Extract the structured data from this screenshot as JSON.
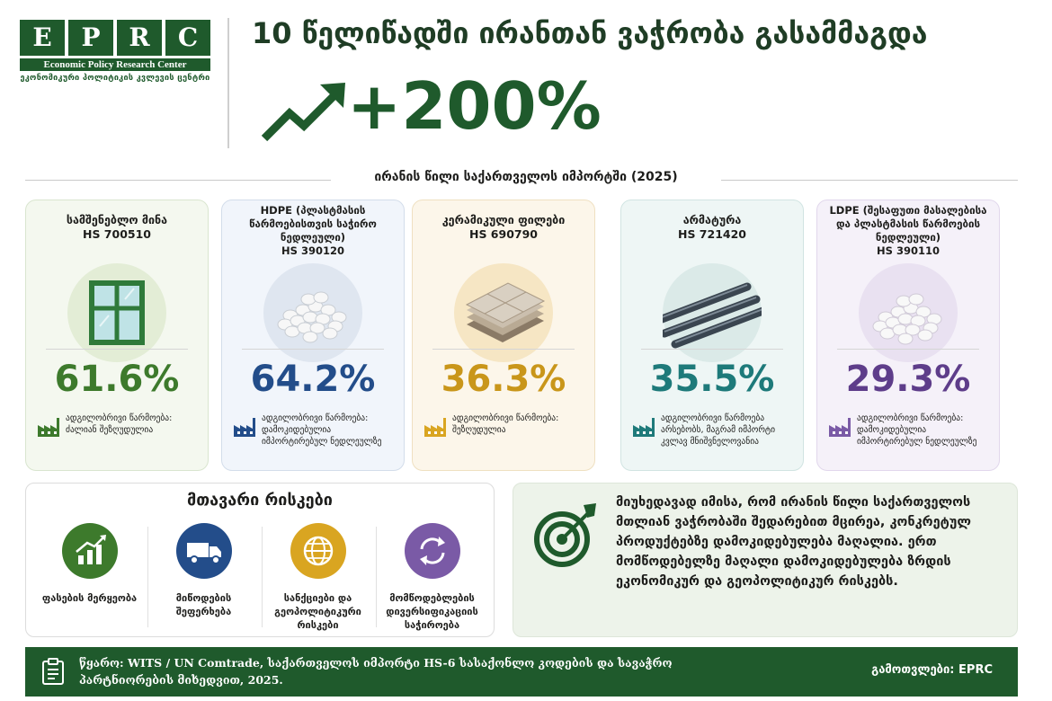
{
  "logo": {
    "letters": [
      "E",
      "P",
      "R",
      "C"
    ],
    "subtitle": "Economic Policy Research Center",
    "subtitle_ka": "ეკონომიკური პოლიტიკის კვლევის ცენტრი"
  },
  "header": {
    "title": "10 წელიწადში ირანთან ვაჭრობა გასამმაგდა",
    "growth": "+200%",
    "colors": {
      "primary": "#1f5a2c"
    }
  },
  "section": {
    "title": "ირანის წილი საქართველოს იმპორტში (2025)"
  },
  "cards": [
    {
      "name": "სამშენებლო მინა",
      "code": "HS 700510",
      "percent": "61.6%",
      "note": "ადგილობრივი წარმოება: ძალიან შეზღუდულია",
      "icon": "window-icon",
      "color": "#3d7a2c"
    },
    {
      "name": "HDPE (პლასტმასის წარმოებისთვის საჭირო ნედლეული)",
      "code": "HS 390120",
      "percent": "64.2%",
      "note": "ადგილობრივი წარმოება: დამოკიდებულია იმპორტირებულ ნედლეულზე",
      "icon": "pellets-icon",
      "color": "#234d8a"
    },
    {
      "name": "კერამიკული ფილები",
      "code": "HS 690790",
      "percent": "36.3%",
      "note": "ადგილობრივი წარმოება: შეზღუდულია",
      "icon": "tiles-icon",
      "color": "#c9961a"
    },
    {
      "name": "არმატურა",
      "code": "HS 721420",
      "percent": "35.5%",
      "note": "ადგილობრივი წარმოება არსებობს, მაგრამ იმპორტი კვლავ მნიშვნელოვანია",
      "icon": "rebar-icon",
      "color": "#1e7a7a"
    },
    {
      "name": "LDPE (შესაფუთი მასალებისა და პლასტმასის წარმოების ნედლეული)",
      "code": "HS 390110",
      "percent": "29.3%",
      "note": "ადგილობრივი წარმოება: დამოკიდებულია იმპორტირებულ ნედლეულზე",
      "icon": "pellets-icon",
      "color": "#5e3d8a"
    }
  ],
  "risks": {
    "title": "მთავარი რისკები",
    "items": [
      {
        "label": "ფასების მერყეობა",
        "icon": "bar-chart-icon",
        "color": "#3d7a2c"
      },
      {
        "label": "მიწოდების შეფერხება",
        "icon": "truck-icon",
        "color": "#234d8a"
      },
      {
        "label": "სანქციები და გეოპოლიტიკური რისკები",
        "icon": "globe-icon",
        "color": "#d9a521"
      },
      {
        "label": "მომწოდებლების დივერსიფიკაციის საჭიროება",
        "icon": "refresh-icon",
        "color": "#7a5aa6"
      }
    ]
  },
  "summary": {
    "text": "მიუხედავად იმისა, რომ ირანის წილი საქართველოს მთლიან ვაჭრობაში შედარებით მცირეა, კონკრეტულ პროდუქტებზე დამოკიდებულება მაღალია. ერთ მომწოდებელზე მაღალი დამოკიდებულება ზრდის ეკონომიკურ და გეოპოლიტიკურ რისკებს."
  },
  "footer": {
    "source": "წყარო: WITS / UN Comtrade, საქართველოს იმპორტი HS-6 სასაქონლო კოდების და სავაჭრო პარტნიორების მიხედვით, 2025.",
    "calc": "გამოთვლები: EPRC"
  }
}
